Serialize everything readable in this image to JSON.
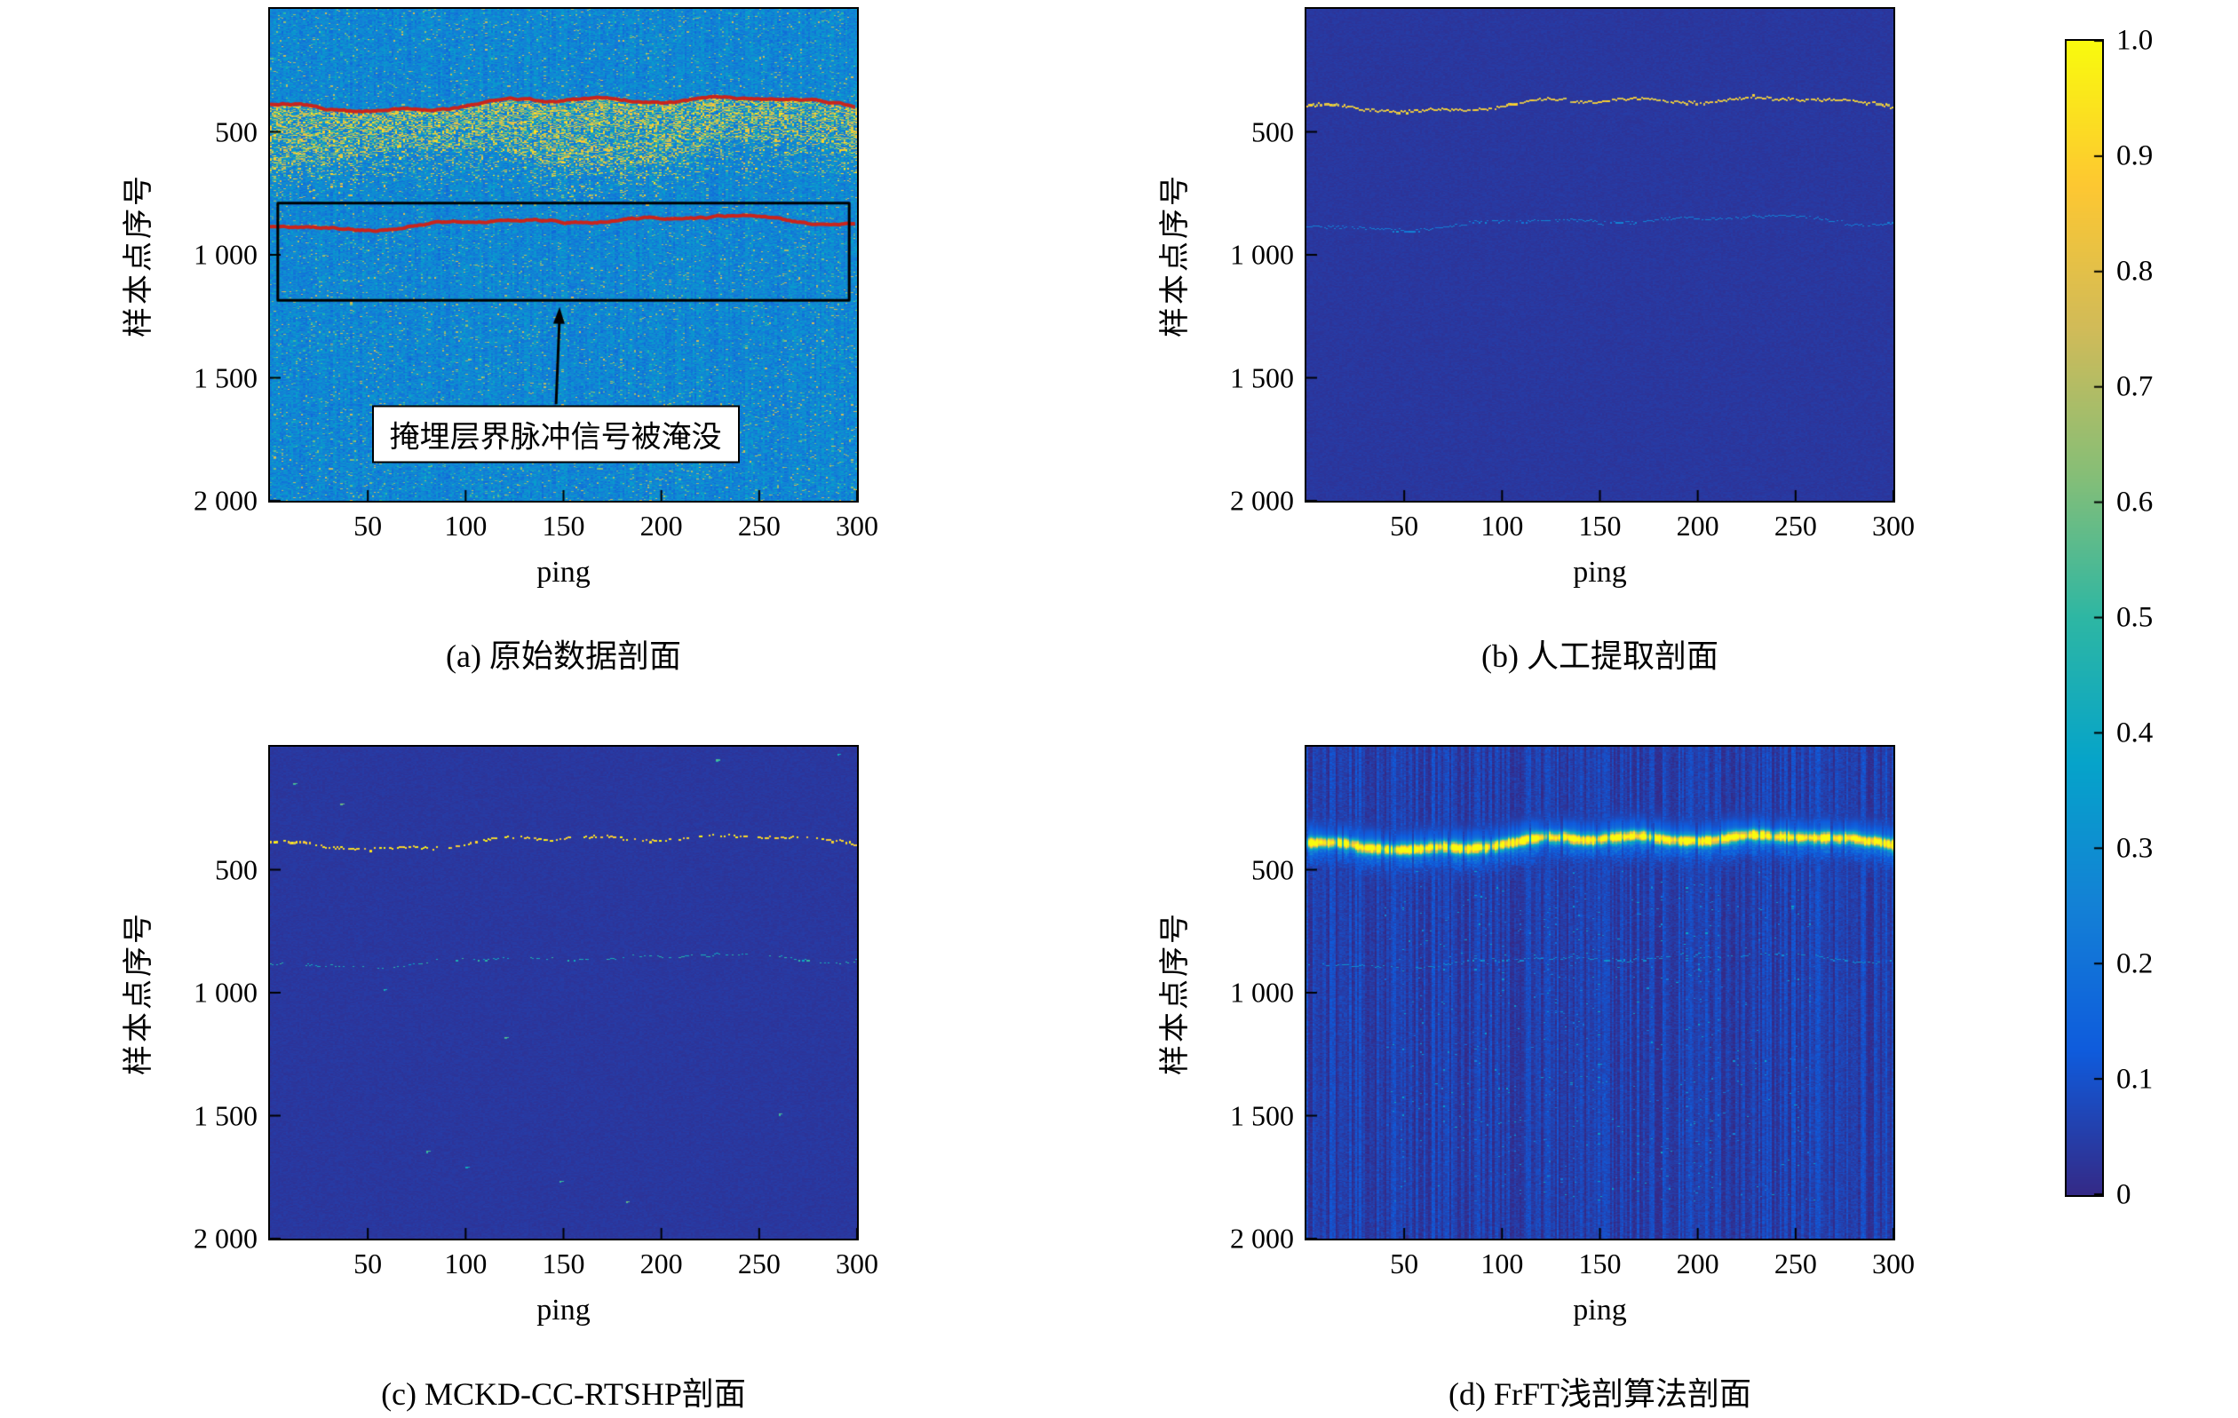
{
  "figure": {
    "background": "#ffffff",
    "colormap_stops": [
      "#352a87",
      "#0f5cdd",
      "#1481d6",
      "#06a4ca",
      "#2eb7a4",
      "#87bf77",
      "#d1bb59",
      "#fec832",
      "#f9fb0e"
    ],
    "trace_color": "#c9251c",
    "box_color": "#000000"
  },
  "curves": {
    "seabed": {
      "base": 385,
      "amp": 40,
      "min": 325,
      "max": 465
    },
    "sublayer": {
      "base": 868,
      "amp": 34,
      "min": 805,
      "max": 935
    }
  },
  "chart_data": [
    {
      "id": "a",
      "type": "heatmap",
      "caption": "(a) 原始数据剖面",
      "xlabel": "ping",
      "ylabel": "样本点序号",
      "xlim": [
        0,
        300
      ],
      "ylim": [
        0,
        2000
      ],
      "y_reversed": true,
      "xtick_values": [
        50,
        100,
        150,
        200,
        250,
        300
      ],
      "xtick_labels": [
        "50",
        "100",
        "150",
        "200",
        "250",
        "300"
      ],
      "ytick_values": [
        500,
        1000,
        1500,
        2000
      ],
      "ytick_labels": [
        "500",
        "1 000",
        "1 500",
        "2 000"
      ],
      "seed": 11,
      "render": {
        "bg": {
          "base": 0.27,
          "amp": 0.08,
          "col_amp": 0.03,
          "speckle_prob": 0.05,
          "speckle_min": 0.38,
          "speckle_max": 0.8
        },
        "band": {
          "follow": "seabed",
          "thickness": 240,
          "density": 0.6,
          "min": 0.45,
          "max": 0.97,
          "fade": 160
        },
        "traces": [
          {
            "curve": "seabed",
            "width": 4
          },
          {
            "curve": "sublayer",
            "width": 4
          }
        ],
        "rect": {
          "x0": 4,
          "x1": 296,
          "y0": 790,
          "y1": 1185
        },
        "annotation": {
          "text": "掩埋层界脉冲信号被淹没",
          "tip_x": 148,
          "tip_y": 1212,
          "label_x": 146,
          "label_y": 1730
        }
      }
    },
    {
      "id": "b",
      "type": "heatmap",
      "caption": "(b) 人工提取剖面",
      "xlabel": "ping",
      "ylabel": "样本点序号",
      "xlim": [
        0,
        300
      ],
      "ylim": [
        0,
        2000
      ],
      "y_reversed": true,
      "xtick_values": [
        50,
        100,
        150,
        200,
        250,
        300
      ],
      "xtick_labels": [
        "50",
        "100",
        "150",
        "200",
        "250",
        "300"
      ],
      "ytick_values": [
        500,
        1000,
        1500,
        2000
      ],
      "ytick_labels": [
        "500",
        "1 000",
        "1 500",
        "2 000"
      ],
      "seed": 22,
      "render": {
        "bg": {
          "base": 0.035,
          "amp": 0.012
        },
        "lines": [
          {
            "curve": "seabed",
            "value": 0.82,
            "density": 0.93,
            "width": 2
          },
          {
            "curve": "sublayer",
            "value": 0.25,
            "density": 0.85,
            "width": 1
          }
        ]
      }
    },
    {
      "id": "c",
      "type": "heatmap",
      "caption": "(c) MCKD-CC-RTSHP剖面",
      "xlabel": "ping",
      "ylabel": "样本点序号",
      "xlim": [
        0,
        300
      ],
      "ylim": [
        0,
        2000
      ],
      "y_reversed": true,
      "xtick_values": [
        50,
        100,
        150,
        200,
        250,
        300
      ],
      "xtick_labels": [
        "50",
        "100",
        "150",
        "200",
        "250",
        "300"
      ],
      "ytick_values": [
        500,
        1000,
        1500,
        2000
      ],
      "ytick_labels": [
        "500",
        "1 000",
        "1 500",
        "2 000"
      ],
      "seed": 33,
      "render": {
        "bg": {
          "base": 0.035,
          "amp": 0.012
        },
        "lines": [
          {
            "curve": "seabed",
            "value": 0.9,
            "density": 0.52,
            "width": 2
          },
          {
            "curve": "sublayer",
            "value": 0.45,
            "density": 0.42,
            "width": 1
          }
        ],
        "dots": [
          [
            12,
            150
          ],
          [
            36,
            235
          ],
          [
            228,
            55
          ],
          [
            290,
            30
          ],
          [
            80,
            1645
          ],
          [
            100,
            1710
          ],
          [
            148,
            1765
          ],
          [
            58,
            985
          ],
          [
            260,
            1495
          ],
          [
            182,
            1850
          ],
          [
            120,
            1180
          ]
        ],
        "dot_value": 0.55
      }
    },
    {
      "id": "d",
      "type": "heatmap",
      "caption": "(d) FrFT浅剖算法剖面",
      "xlabel": "ping",
      "ylabel": "样本点序号",
      "xlim": [
        0,
        300
      ],
      "ylim": [
        0,
        2000
      ],
      "y_reversed": true,
      "xtick_values": [
        50,
        100,
        150,
        200,
        250,
        300
      ],
      "xtick_labels": [
        "50",
        "100",
        "150",
        "200",
        "250",
        "300"
      ],
      "ytick_values": [
        500,
        1000,
        1500,
        2000
      ],
      "ytick_labels": [
        "500",
        "1 000",
        "1 500",
        "2 000"
      ],
      "seed": 44,
      "render": {
        "bg": {
          "base": 0.055,
          "amp": 0.03,
          "col_amp": 0.05
        },
        "glow": {
          "curve": "seabed",
          "peak": 1.0,
          "sigma": 14,
          "halo": 0.22
        },
        "lines": [
          {
            "curve": "sublayer",
            "value": 0.3,
            "density": 0.45,
            "width": 1
          }
        ],
        "rain": {
          "x0": 40,
          "x1": 260,
          "y0": 500,
          "y1": 1850,
          "prob": 0.01,
          "min": 0.15,
          "max": 0.4
        }
      }
    }
  ],
  "colorbar": {
    "min": 0,
    "max": 1,
    "tick_values": [
      1.0,
      0.9,
      0.8,
      0.7,
      0.6,
      0.5,
      0.4,
      0.3,
      0.2,
      0.1,
      0
    ],
    "tick_labels": [
      "1.0",
      "0.9",
      "0.8",
      "0.7",
      "0.6",
      "0.5",
      "0.4",
      "0.3",
      "0.2",
      "0.1",
      "0"
    ]
  }
}
